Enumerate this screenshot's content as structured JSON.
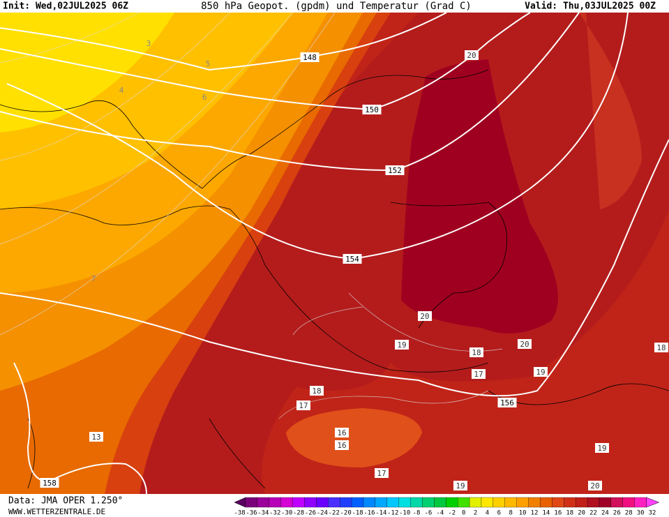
{
  "header": {
    "init": "Init: Wed,02JUL2025 06Z",
    "title": "850 hPa Geopot. (gpdm) und Temperatur (Grad C)",
    "valid": "Valid: Thu,03JUL2025 00Z"
  },
  "height_labels": [
    "148",
    "150",
    "152",
    "154",
    "156",
    "158"
  ],
  "temperature_labels": [
    "3",
    "4",
    "5",
    "6",
    "7",
    "13",
    "20",
    "20",
    "20",
    "19",
    "18",
    "17",
    "19",
    "18",
    "17",
    "16",
    "16",
    "17",
    "19",
    "19",
    "20",
    "18"
  ],
  "colorbar": {
    "labels": [
      "-38",
      "-36",
      "-34",
      "-32",
      "-30",
      "-28",
      "-26",
      "-24",
      "-22",
      "-20",
      "-18",
      "-16",
      "-14",
      "-12",
      "-10",
      "-8",
      "-6",
      "-4",
      "-2",
      "0",
      "2",
      "4",
      "6",
      "8",
      "10",
      "12",
      "14",
      "16",
      "18",
      "20",
      "22",
      "24",
      "26",
      "28",
      "30",
      "32"
    ],
    "colors": [
      "#5a0060",
      "#7a007a",
      "#9a009a",
      "#b800b8",
      "#d400d4",
      "#c000ff",
      "#9000ff",
      "#6a00ff",
      "#4a30ff",
      "#2040ff",
      "#0060ff",
      "#0088ff",
      "#00a8ff",
      "#00c8ff",
      "#00e0e0",
      "#00d8a8",
      "#00d070",
      "#00c840",
      "#00d000",
      "#40e000",
      "#e0f000",
      "#ffe800",
      "#ffd000",
      "#ffb800",
      "#ffa000",
      "#f08000",
      "#e86000",
      "#e04818",
      "#d03018",
      "#c02018",
      "#b01020",
      "#a00028",
      "#d0105a",
      "#f01080",
      "#ff20c0",
      "#ff40ff"
    ]
  },
  "footer": {
    "data": "Data: JMA OPER 1.250°",
    "site": "WWW.WETTERZENTRALE.DE"
  }
}
